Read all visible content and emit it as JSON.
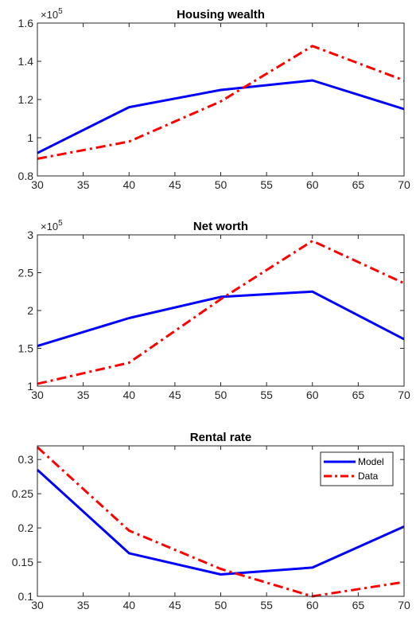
{
  "chart_data": [
    {
      "type": "line",
      "title": "Housing wealth",
      "xlabel": "",
      "ylabel": "",
      "x": [
        30,
        40,
        50,
        60,
        70
      ],
      "xlim": [
        30,
        70
      ],
      "ylim": [
        0.8,
        1.6
      ],
      "xticks": [
        30,
        35,
        40,
        45,
        50,
        55,
        60,
        65,
        70
      ],
      "yticks": [
        0.8,
        1,
        1.2,
        1.4,
        1.6
      ],
      "ytick_labels": [
        "0.8",
        "1",
        "1.2",
        "1.4",
        "1.6"
      ],
      "y_exponent_label": "×10",
      "y_exponent_power": "5",
      "series": [
        {
          "name": "Model",
          "color": "#0000ff",
          "style": "solid",
          "values": [
            0.92,
            1.16,
            1.25,
            1.3,
            1.15
          ]
        },
        {
          "name": "Data",
          "color": "#ff0000",
          "style": "dashdot",
          "values": [
            0.89,
            0.98,
            1.19,
            1.48,
            1.3
          ]
        }
      ],
      "legend": false,
      "grid": false
    },
    {
      "type": "line",
      "title": "Net worth",
      "xlabel": "",
      "ylabel": "",
      "x": [
        30,
        40,
        50,
        60,
        70
      ],
      "xlim": [
        30,
        70
      ],
      "ylim": [
        1,
        3
      ],
      "xticks": [
        30,
        35,
        40,
        45,
        50,
        55,
        60,
        65,
        70
      ],
      "yticks": [
        1,
        1.5,
        2,
        2.5,
        3
      ],
      "ytick_labels": [
        "1",
        "1.5",
        "2",
        "2.5",
        "3"
      ],
      "y_exponent_label": "×10",
      "y_exponent_power": "5",
      "series": [
        {
          "name": "Model",
          "color": "#0000ff",
          "style": "solid",
          "values": [
            1.53,
            1.9,
            2.18,
            2.25,
            1.62
          ]
        },
        {
          "name": "Data",
          "color": "#ff0000",
          "style": "dashdot",
          "values": [
            1.03,
            1.31,
            2.15,
            2.92,
            2.36
          ]
        }
      ],
      "legend": false,
      "grid": false
    },
    {
      "type": "line",
      "title": "Rental rate",
      "xlabel": "",
      "ylabel": "",
      "x": [
        30,
        40,
        50,
        60,
        70
      ],
      "xlim": [
        30,
        70
      ],
      "ylim": [
        0.1,
        0.32
      ],
      "xticks": [
        30,
        35,
        40,
        45,
        50,
        55,
        60,
        65,
        70
      ],
      "yticks": [
        0.1,
        0.15,
        0.2,
        0.25,
        0.3
      ],
      "ytick_labels": [
        "0.1",
        "0.15",
        "0.2",
        "0.25",
        "0.3"
      ],
      "series": [
        {
          "name": "Model",
          "color": "#0000ff",
          "style": "solid",
          "values": [
            0.285,
            0.163,
            0.132,
            0.142,
            0.202
          ]
        },
        {
          "name": "Data",
          "color": "#ff0000",
          "style": "dashdot",
          "values": [
            0.318,
            0.196,
            0.14,
            0.1,
            0.121
          ]
        }
      ],
      "legend": true,
      "legend_position": "top-right",
      "grid": false
    }
  ]
}
